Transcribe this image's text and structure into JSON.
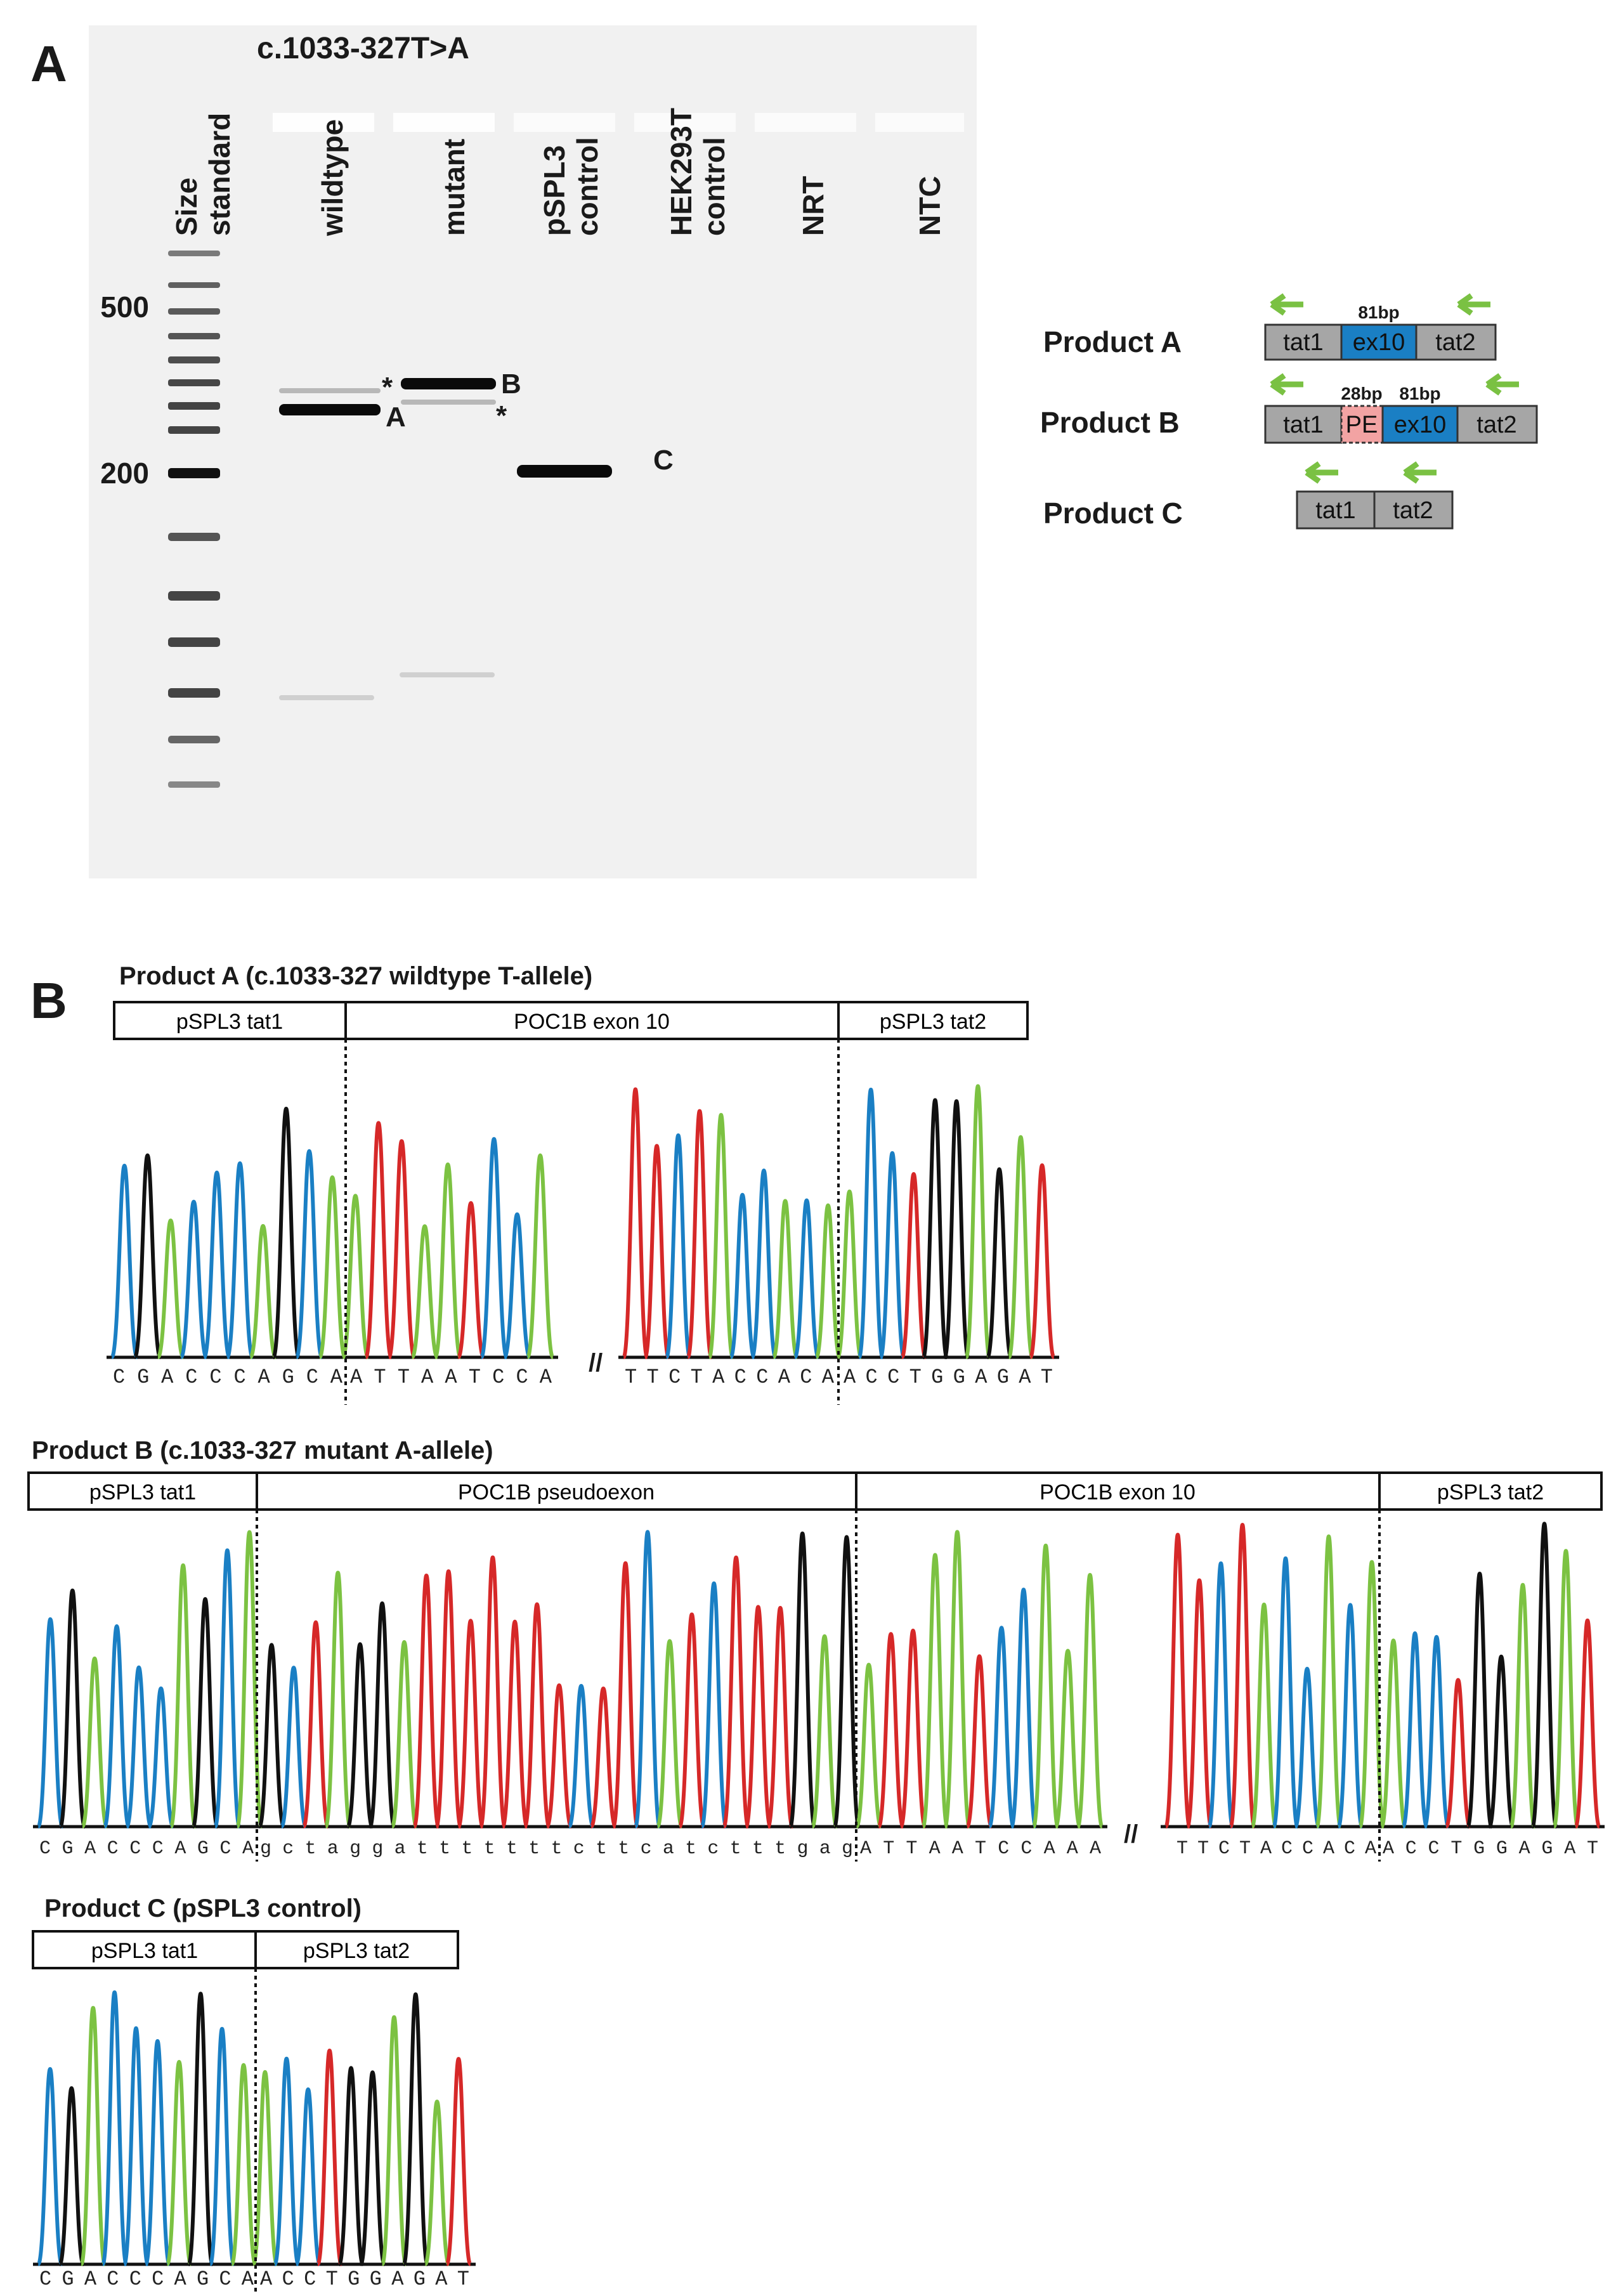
{
  "panel_a": {
    "letter": "A",
    "title": "c.1033-327T>A",
    "lanes": [
      {
        "l1": "Size",
        "l2": "standard"
      },
      {
        "l1": "wildtype",
        "l2": ""
      },
      {
        "l1": "mutant",
        "l2": ""
      },
      {
        "l1": "pSPL3",
        "l2": "control"
      },
      {
        "l1": "HEK293T",
        "l2": "control"
      },
      {
        "l1": "NRT",
        "l2": ""
      },
      {
        "l1": "NTC",
        "l2": ""
      }
    ],
    "size_marks": [
      "500",
      "200"
    ],
    "band_labels": [
      "A",
      "B",
      "C"
    ],
    "star": "*",
    "products": [
      {
        "label": "Product A",
        "segments": [
          "tat1",
          "ex10",
          "tat2"
        ],
        "bp": [
          "81bp"
        ]
      },
      {
        "label": "Product B",
        "segments": [
          "tat1",
          "PE",
          "ex10",
          "tat2"
        ],
        "bp": [
          "28bp",
          "81bp"
        ]
      },
      {
        "label": "Product C",
        "segments": [
          "tat1",
          "tat2"
        ],
        "bp": []
      }
    ],
    "colors": {
      "arrow": "#7ac143",
      "ex10": "#1a7fc4",
      "pe": "#f2a3a3",
      "box": "#a6a6a6"
    }
  },
  "panel_b": {
    "letter": "B",
    "traces": [
      {
        "title": "Product A (c.1033-327 wildtype T-allele)",
        "regions": [
          "pSPL3 tat1",
          "POC1B exon 10",
          "pSPL3 tat2"
        ],
        "seq1": "CGACCCAGCA",
        "seq2": "ATTAATCCA",
        "seq3": "TTCTACCACA",
        "seq4": "ACCTGGAGAT",
        "break": "//"
      },
      {
        "title": "Product B (c.1033-327 mutant A-allele)",
        "regions": [
          "pSPL3 tat1",
          "POC1B pseudoexon",
          "POC1B exon 10",
          "pSPL3 tat2"
        ],
        "seq1": "CGACCCAGCA",
        "seq2": "gctaggatttttttcttcatctttgag",
        "seq3": "ATTAATCCAAA",
        "seq4": "TTCTACCACA",
        "seq5": "ACCTGGAGAT",
        "break": "//"
      },
      {
        "title": "Product C (pSPL3 control)",
        "regions": [
          "pSPL3 tat1",
          "pSPL3 tat2"
        ],
        "seq1": "CGACCCAGCA",
        "seq2": "ACCTGGAGAT"
      }
    ],
    "base_colors": {
      "A": "#7cc242",
      "C": "#1a7fc4",
      "G": "#111111",
      "T": "#d62828"
    }
  }
}
